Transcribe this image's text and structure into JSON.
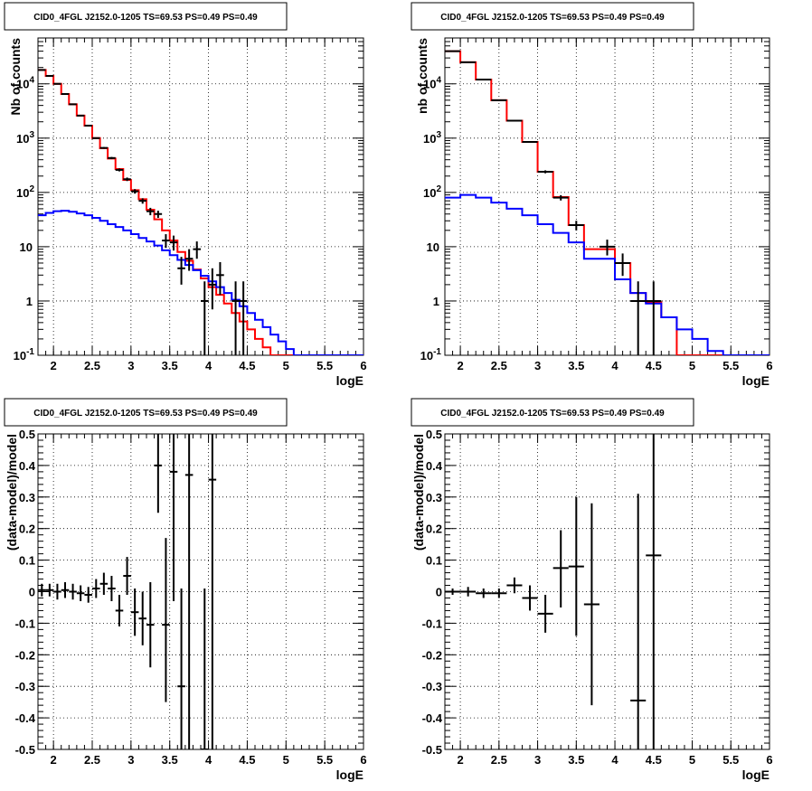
{
  "chart_data": [
    {
      "type": "line",
      "title": "CID0_4FGL J2152.0-1205 TS=69.53 PS=0.49 PS=0.49",
      "xlabel": "logE",
      "ylabel": "Nb of counts",
      "xlim": [
        1.8,
        6.0
      ],
      "ylim": [
        0.1,
        70000
      ],
      "yscale": "log",
      "grid": true,
      "xticks": [
        "2",
        "2.5",
        "3",
        "3.5",
        "4",
        "4.5",
        "5",
        "5.5",
        "6"
      ],
      "yticks": [
        "10^-1",
        "1",
        "10",
        "10^2",
        "10^3",
        "10^4"
      ],
      "bin_edges": [
        1.8,
        1.9,
        2.0,
        2.1,
        2.2,
        2.3,
        2.4,
        2.5,
        2.6,
        2.7,
        2.8,
        2.9,
        3.0,
        3.1,
        3.2,
        3.3,
        3.4,
        3.5,
        3.6,
        3.7,
        3.8,
        3.9,
        4.0,
        4.1,
        4.2,
        4.3,
        4.4,
        4.5,
        4.6,
        4.7,
        4.8,
        4.9,
        5.0,
        5.1,
        5.2,
        5.3,
        5.4,
        5.5,
        5.6,
        5.7,
        5.8,
        5.9,
        6.0
      ],
      "series": [
        {
          "color": "#ff0000",
          "kind": "step",
          "values": [
            18000,
            14000,
            10000,
            6500,
            4200,
            2600,
            1700,
            1000,
            650,
            420,
            270,
            170,
            110,
            75,
            48,
            32,
            20,
            13,
            8,
            5.5,
            3.8,
            2.6,
            1.8,
            1.3,
            0.9,
            0.6,
            0.42,
            0.3,
            0.2,
            0.14,
            0.1,
            0.1,
            0.1,
            0.1,
            0.1,
            0.1,
            0.1,
            0.1,
            0.1,
            0.1,
            0.1,
            0.1
          ]
        },
        {
          "color": "#0000ff",
          "kind": "step",
          "values": [
            38,
            42,
            45,
            46,
            44,
            41,
            38,
            34,
            30,
            26,
            23,
            20,
            17,
            14.5,
            12.5,
            10.5,
            8.6,
            7,
            5.7,
            4.6,
            3.7,
            2.9,
            2.3,
            1.8,
            1.4,
            1.05,
            0.8,
            0.6,
            0.45,
            0.33,
            0.24,
            0.18,
            0.13,
            0.1,
            0.1,
            0.1,
            0.1,
            0.1,
            0.1,
            0.1,
            0.1,
            0.1
          ]
        },
        {
          "color": "#000000",
          "kind": "points",
          "points": [
            {
              "x": 1.85,
              "y": 18000,
              "xerr": 0.05,
              "ylo": 17800,
              "yhi": 18200
            },
            {
              "x": 1.95,
              "y": 14000,
              "xerr": 0.05,
              "ylo": 13800,
              "yhi": 14200
            },
            {
              "x": 2.05,
              "y": 10000,
              "xerr": 0.05,
              "ylo": 9900,
              "yhi": 10100
            },
            {
              "x": 2.15,
              "y": 6500,
              "xerr": 0.05,
              "ylo": 6400,
              "yhi": 6600
            },
            {
              "x": 2.25,
              "y": 4200,
              "xerr": 0.05,
              "ylo": 4130,
              "yhi": 4270
            },
            {
              "x": 2.35,
              "y": 2600,
              "xerr": 0.05,
              "ylo": 2550,
              "yhi": 2650
            },
            {
              "x": 2.45,
              "y": 1700,
              "xerr": 0.05,
              "ylo": 1660,
              "yhi": 1740
            },
            {
              "x": 2.55,
              "y": 1000,
              "xerr": 0.05,
              "ylo": 970,
              "yhi": 1030
            },
            {
              "x": 2.65,
              "y": 660,
              "xerr": 0.05,
              "ylo": 635,
              "yhi": 685
            },
            {
              "x": 2.75,
              "y": 430,
              "xerr": 0.05,
              "ylo": 410,
              "yhi": 450
            },
            {
              "x": 2.85,
              "y": 260,
              "xerr": 0.05,
              "ylo": 244,
              "yhi": 276
            },
            {
              "x": 2.95,
              "y": 175,
              "xerr": 0.05,
              "ylo": 162,
              "yhi": 188
            },
            {
              "x": 3.05,
              "y": 105,
              "xerr": 0.05,
              "ylo": 95,
              "yhi": 115
            },
            {
              "x": 3.15,
              "y": 70,
              "xerr": 0.05,
              "ylo": 62,
              "yhi": 78
            },
            {
              "x": 3.25,
              "y": 45,
              "xerr": 0.05,
              "ylo": 38,
              "yhi": 52
            },
            {
              "x": 3.35,
              "y": 40,
              "xerr": 0.05,
              "ylo": 34,
              "yhi": 46
            },
            {
              "x": 3.45,
              "y": 13,
              "xerr": 0.05,
              "ylo": 9.5,
              "yhi": 17
            },
            {
              "x": 3.55,
              "y": 12,
              "xerr": 0.05,
              "ylo": 8.5,
              "yhi": 16
            },
            {
              "x": 3.65,
              "y": 4,
              "xerr": 0.05,
              "ylo": 2,
              "yhi": 6.5
            },
            {
              "x": 3.75,
              "y": 6,
              "xerr": 0.05,
              "ylo": 3.6,
              "yhi": 9
            },
            {
              "x": 3.85,
              "y": 9,
              "xerr": 0.05,
              "ylo": 6,
              "yhi": 12.5
            },
            {
              "x": 3.95,
              "y": 1,
              "xerr": 0.05,
              "ylo": 0.1,
              "yhi": 2.3
            },
            {
              "x": 4.05,
              "y": 2,
              "xerr": 0.05,
              "ylo": 0.7,
              "yhi": 4
            },
            {
              "x": 4.15,
              "y": 3,
              "xerr": 0.05,
              "ylo": 1.3,
              "yhi": 5.2
            },
            {
              "x": 4.35,
              "y": 1,
              "xerr": 0.05,
              "ylo": 0.1,
              "yhi": 2.3
            },
            {
              "x": 4.45,
              "y": 1,
              "xerr": 0.05,
              "ylo": 0.1,
              "yhi": 2.3
            }
          ]
        }
      ]
    },
    {
      "type": "line",
      "title": "CID0_4FGL J2152.0-1205 TS=69.53 PS=0.49 PS=0.49",
      "xlabel": "logE",
      "ylabel": "nb of counts",
      "xlim": [
        1.8,
        6.0
      ],
      "ylim": [
        0.1,
        70000
      ],
      "yscale": "log",
      "grid": true,
      "xticks": [
        "2",
        "2.5",
        "3",
        "3.5",
        "4",
        "4.5",
        "5",
        "5.5",
        "6"
      ],
      "yticks": [
        "10^-1",
        "1",
        "10",
        "10^2",
        "10^3",
        "10^4"
      ],
      "bin_edges": [
        1.8,
        2.0,
        2.2,
        2.4,
        2.6,
        2.8,
        3.0,
        3.2,
        3.4,
        3.6,
        3.8,
        4.0,
        4.2,
        4.4,
        4.6,
        4.8,
        5.0,
        5.2,
        5.4,
        5.6,
        5.8,
        6.0
      ],
      "series": [
        {
          "color": "#ff0000",
          "kind": "step",
          "values": [
            40000,
            25000,
            12000,
            5000,
            2100,
            850,
            240,
            82,
            25,
            9,
            9,
            5,
            1.4,
            0.95,
            0.5,
            0.1,
            0.1,
            0.1,
            0.1,
            0.1,
            0.1
          ]
        },
        {
          "color": "#0000ff",
          "kind": "step",
          "values": [
            80,
            90,
            80,
            65,
            50,
            38,
            26,
            18,
            12,
            6,
            6,
            2.5,
            1.4,
            0.9,
            0.5,
            0.3,
            0.2,
            0.12,
            0.1,
            0.1,
            0.1
          ]
        },
        {
          "color": "#000000",
          "kind": "points",
          "points": [
            {
              "x": 1.9,
              "y": 40000,
              "xerr": 0.1,
              "ylo": 39700,
              "yhi": 40300
            },
            {
              "x": 2.1,
              "y": 25000,
              "xerr": 0.1,
              "ylo": 24750,
              "yhi": 25250
            },
            {
              "x": 2.3,
              "y": 12000,
              "xerr": 0.1,
              "ylo": 11880,
              "yhi": 12120
            },
            {
              "x": 2.5,
              "y": 5000,
              "xerr": 0.1,
              "ylo": 4920,
              "yhi": 5080
            },
            {
              "x": 2.7,
              "y": 2100,
              "xerr": 0.1,
              "ylo": 2050,
              "yhi": 2150
            },
            {
              "x": 2.9,
              "y": 850,
              "xerr": 0.1,
              "ylo": 820,
              "yhi": 880
            },
            {
              "x": 3.1,
              "y": 240,
              "xerr": 0.1,
              "ylo": 225,
              "yhi": 255
            },
            {
              "x": 3.3,
              "y": 80,
              "xerr": 0.1,
              "ylo": 71,
              "yhi": 89
            },
            {
              "x": 3.5,
              "y": 25,
              "xerr": 0.1,
              "ylo": 20,
              "yhi": 30
            },
            {
              "x": 3.9,
              "y": 10,
              "xerr": 0.1,
              "ylo": 6.9,
              "yhi": 13.5
            },
            {
              "x": 4.1,
              "y": 5,
              "xerr": 0.1,
              "ylo": 2.9,
              "yhi": 7.5
            },
            {
              "x": 4.3,
              "y": 1,
              "xerr": 0.1,
              "ylo": 0.1,
              "yhi": 2.3
            },
            {
              "x": 4.5,
              "y": 1,
              "xerr": 0.1,
              "ylo": 0.1,
              "yhi": 2.3
            }
          ]
        }
      ]
    },
    {
      "type": "scatter",
      "title": "CID0_4FGL J2152.0-1205 TS=69.53 PS=0.49 PS=0.49",
      "xlabel": "logE",
      "ylabel": "(data-model)/model",
      "xlim": [
        1.8,
        6.0
      ],
      "ylim": [
        -0.5,
        0.5
      ],
      "grid": true,
      "xticks": [
        "2",
        "2.5",
        "3",
        "3.5",
        "4",
        "4.5",
        "5",
        "5.5",
        "6"
      ],
      "yticks": [
        "-0.5",
        "-0.4",
        "-0.3",
        "-0.2",
        "-0.1",
        "0",
        "0.1",
        "0.2",
        "0.3",
        "0.4",
        "0.5"
      ],
      "points": [
        {
          "x": 1.85,
          "y": 0.005,
          "xerr": 0.05,
          "ylo": -0.015,
          "yhi": 0.025
        },
        {
          "x": 1.95,
          "y": 0.005,
          "xerr": 0.05,
          "ylo": -0.015,
          "yhi": 0.025
        },
        {
          "x": 2.05,
          "y": 0.0,
          "xerr": 0.05,
          "ylo": -0.025,
          "yhi": 0.025
        },
        {
          "x": 2.15,
          "y": 0.005,
          "xerr": 0.05,
          "ylo": -0.02,
          "yhi": 0.03
        },
        {
          "x": 2.25,
          "y": 0.0,
          "xerr": 0.05,
          "ylo": -0.025,
          "yhi": 0.025
        },
        {
          "x": 2.35,
          "y": -0.005,
          "xerr": 0.05,
          "ylo": -0.03,
          "yhi": 0.02
        },
        {
          "x": 2.45,
          "y": -0.01,
          "xerr": 0.05,
          "ylo": -0.035,
          "yhi": 0.015
        },
        {
          "x": 2.55,
          "y": 0.01,
          "xerr": 0.05,
          "ylo": -0.02,
          "yhi": 0.04
        },
        {
          "x": 2.65,
          "y": 0.025,
          "xerr": 0.05,
          "ylo": -0.01,
          "yhi": 0.06
        },
        {
          "x": 2.75,
          "y": 0.01,
          "xerr": 0.05,
          "ylo": -0.03,
          "yhi": 0.05
        },
        {
          "x": 2.85,
          "y": -0.06,
          "xerr": 0.05,
          "ylo": -0.11,
          "yhi": -0.01
        },
        {
          "x": 2.95,
          "y": 0.05,
          "xerr": 0.05,
          "ylo": -0.01,
          "yhi": 0.11
        },
        {
          "x": 3.05,
          "y": -0.065,
          "xerr": 0.05,
          "ylo": -0.14,
          "yhi": 0.01
        },
        {
          "x": 3.15,
          "y": -0.085,
          "xerr": 0.05,
          "ylo": -0.17,
          "yhi": 0.0
        },
        {
          "x": 3.25,
          "y": -0.105,
          "xerr": 0.05,
          "ylo": -0.24,
          "yhi": 0.03
        },
        {
          "x": 3.35,
          "y": 0.4,
          "xerr": 0.05,
          "ylo": 0.25,
          "yhi": 0.5
        },
        {
          "x": 3.45,
          "y": -0.105,
          "xerr": 0.05,
          "ylo": -0.35,
          "yhi": 0.17
        },
        {
          "x": 3.55,
          "y": 0.38,
          "xerr": 0.05,
          "ylo": -0.03,
          "yhi": 0.5
        },
        {
          "x": 3.65,
          "y": -0.3,
          "xerr": 0.05,
          "ylo": -0.5,
          "yhi": 0.01
        },
        {
          "x": 3.75,
          "y": 0.37,
          "xerr": 0.05,
          "ylo": -0.5,
          "yhi": 0.5
        },
        {
          "x": 3.95,
          "y": -0.5,
          "xerr": 0.05,
          "ylo": -0.5,
          "yhi": 0.01
        },
        {
          "x": 4.05,
          "y": 0.355,
          "xerr": 0.05,
          "ylo": -0.5,
          "yhi": 0.5
        }
      ]
    },
    {
      "type": "scatter",
      "title": "CID0_4FGL J2152.0-1205 TS=69.53 PS=0.49 PS=0.49",
      "xlabel": "logE",
      "ylabel": "(data-model)/model",
      "xlim": [
        1.8,
        6.0
      ],
      "ylim": [
        -0.5,
        0.5
      ],
      "grid": true,
      "xticks": [
        "2",
        "2.5",
        "3",
        "3.5",
        "4",
        "4.5",
        "5",
        "5.5",
        "6"
      ],
      "yticks": [
        "-0.5",
        "-0.4",
        "-0.3",
        "-0.2",
        "-0.1",
        "0",
        "0.1",
        "0.2",
        "0.3",
        "0.4",
        "0.5"
      ],
      "points": [
        {
          "x": 1.9,
          "y": 0.0,
          "xerr": 0.1,
          "ylo": -0.01,
          "yhi": 0.01
        },
        {
          "x": 2.1,
          "y": 0.0,
          "xerr": 0.1,
          "ylo": -0.015,
          "yhi": 0.015
        },
        {
          "x": 2.3,
          "y": -0.005,
          "xerr": 0.1,
          "ylo": -0.02,
          "yhi": 0.01
        },
        {
          "x": 2.5,
          "y": -0.005,
          "xerr": 0.1,
          "ylo": -0.02,
          "yhi": 0.01
        },
        {
          "x": 2.7,
          "y": 0.02,
          "xerr": 0.1,
          "ylo": -0.005,
          "yhi": 0.045
        },
        {
          "x": 2.9,
          "y": -0.02,
          "xerr": 0.1,
          "ylo": -0.06,
          "yhi": 0.02
        },
        {
          "x": 3.1,
          "y": -0.07,
          "xerr": 0.1,
          "ylo": -0.13,
          "yhi": -0.01
        },
        {
          "x": 3.3,
          "y": 0.075,
          "xerr": 0.1,
          "ylo": -0.05,
          "yhi": 0.195
        },
        {
          "x": 3.5,
          "y": 0.08,
          "xerr": 0.1,
          "ylo": -0.14,
          "yhi": 0.3
        },
        {
          "x": 3.7,
          "y": -0.04,
          "xerr": 0.1,
          "ylo": -0.36,
          "yhi": 0.28
        },
        {
          "x": 4.3,
          "y": -0.345,
          "xerr": 0.1,
          "ylo": -0.5,
          "yhi": 0.31
        },
        {
          "x": 4.5,
          "y": 0.115,
          "xerr": 0.1,
          "ylo": -0.5,
          "yhi": 0.5
        }
      ]
    }
  ]
}
